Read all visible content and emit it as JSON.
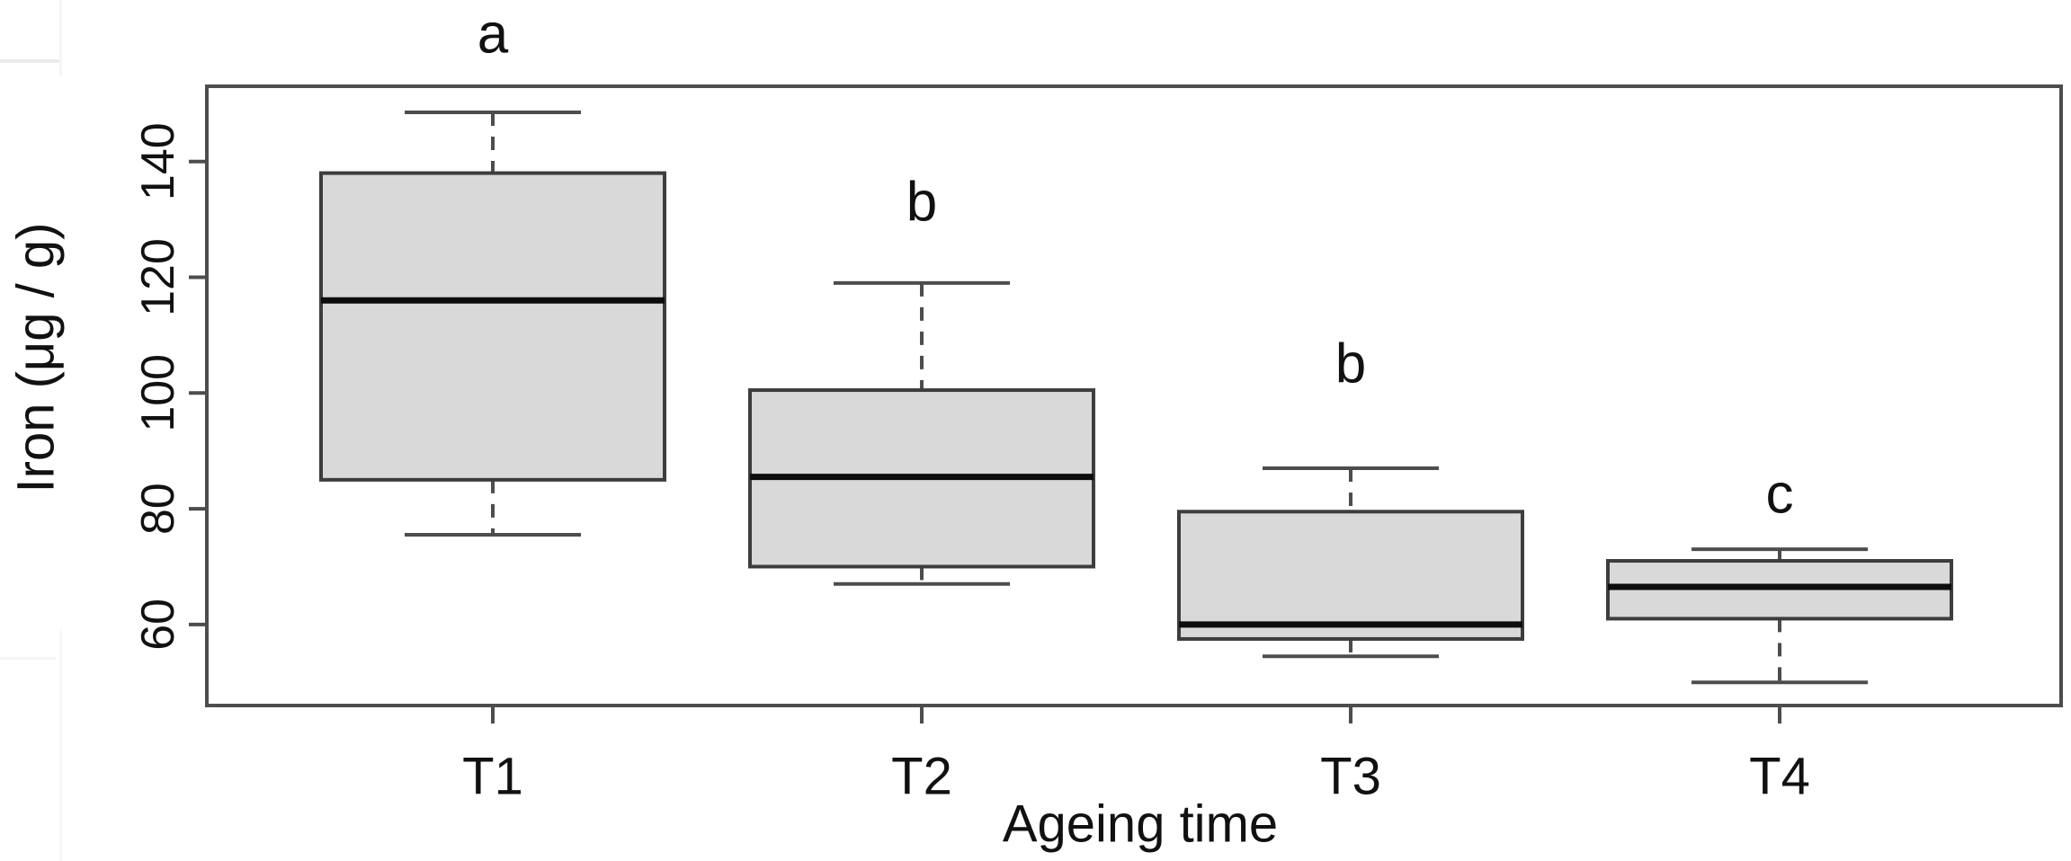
{
  "figure": {
    "background_color": "#ffffff",
    "description": "R-style box-and-whisker plot of iron content across four ageing times with significance letters"
  },
  "chart_data": {
    "type": "boxplot",
    "title": "",
    "xlabel": "Ageing time",
    "ylabel": "Iron (μg / g)",
    "categories": [
      "T1",
      "T2",
      "T3",
      "T4"
    ],
    "y_ticks": [
      60,
      80,
      100,
      120,
      140
    ],
    "ylim": [
      46,
      153
    ],
    "grid": false,
    "legend": "none",
    "series": [
      {
        "category": "T1",
        "whisker_low": 75.5,
        "q1": 85,
        "median": 116,
        "q3": 138,
        "whisker_high": 148.5,
        "sig_letter": "a",
        "letter_y": 162
      },
      {
        "category": "T2",
        "whisker_low": 67,
        "q1": 70,
        "median": 85.5,
        "q3": 100.5,
        "whisker_high": 119,
        "sig_letter": "b",
        "letter_y": 133
      },
      {
        "category": "T3",
        "whisker_low": 54.5,
        "q1": 57.5,
        "median": 60,
        "q3": 79.5,
        "whisker_high": 87,
        "sig_letter": "b",
        "letter_y": 105
      },
      {
        "category": "T4",
        "whisker_low": 50,
        "q1": 61,
        "median": 66.5,
        "q3": 71,
        "whisker_high": 73,
        "sig_letter": "c",
        "letter_y": 82.5
      }
    ],
    "colors": {
      "box_fill": "#d9d9d9",
      "box_stroke": "#3d3d3d",
      "median": "#0d0d0d",
      "whisker": "#4d4d4d",
      "axis": "#4d4d4d",
      "text": "#111111",
      "artifact": "#ececec"
    }
  }
}
